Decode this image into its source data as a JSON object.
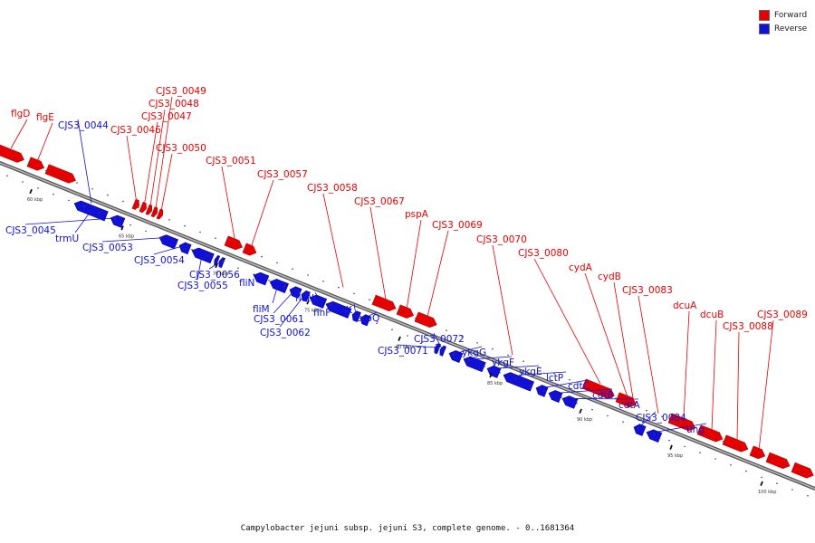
{
  "legend": {
    "items": [
      {
        "label": "Forward",
        "color": "#e60000"
      },
      {
        "label": "Reverse",
        "color": "#1010d8"
      }
    ]
  },
  "caption": "Campylobacter jejuni subsp. jejuni S3, complete genome. - 0..1681364",
  "ticks": [
    "60 kbp",
    "65 kbp",
    "70 kbp",
    "75 kbp",
    "80 kbp",
    "85 kbp",
    "90 kbp",
    "95 kbp",
    "100 kbp"
  ],
  "colors": {
    "forward": "#e60000",
    "reverse": "#1010d8",
    "axis": "#888888"
  },
  "genes": [
    {
      "name": "flgD",
      "strand": "forward"
    },
    {
      "name": "flgE",
      "strand": "forward"
    },
    {
      "name": "CJS3_0044",
      "strand": "reverse"
    },
    {
      "name": "CJS3_0045",
      "strand": "reverse"
    },
    {
      "name": "trmU",
      "strand": "reverse"
    },
    {
      "name": "CJS3_0046",
      "strand": "forward"
    },
    {
      "name": "CJS3_0047",
      "strand": "forward"
    },
    {
      "name": "CJS3_0048",
      "strand": "forward"
    },
    {
      "name": "CJS3_0049",
      "strand": "forward"
    },
    {
      "name": "CJS3_0050",
      "strand": "forward"
    },
    {
      "name": "CJS3_0051",
      "strand": "forward"
    },
    {
      "name": "CJS3_0053",
      "strand": "reverse"
    },
    {
      "name": "CJS3_0054",
      "strand": "reverse"
    },
    {
      "name": "CJS3_0055",
      "strand": "reverse"
    },
    {
      "name": "CJS3_0056",
      "strand": "reverse"
    },
    {
      "name": "CJS3_0057",
      "strand": "forward"
    },
    {
      "name": "CJS3_0058",
      "strand": "forward"
    },
    {
      "name": "fliN",
      "strand": "reverse"
    },
    {
      "name": "fliM",
      "strand": "reverse"
    },
    {
      "name": "CJS3_0061",
      "strand": "reverse"
    },
    {
      "name": "CJS3_0062",
      "strand": "reverse"
    },
    {
      "name": "fleN",
      "strand": "reverse"
    },
    {
      "name": "flhF",
      "strand": "reverse"
    },
    {
      "name": "folK",
      "strand": "reverse"
    },
    {
      "name": "aroQ",
      "strand": "reverse"
    },
    {
      "name": "CJS3_0067",
      "strand": "forward"
    },
    {
      "name": "pspA",
      "strand": "forward"
    },
    {
      "name": "CJS3_0069",
      "strand": "forward"
    },
    {
      "name": "CJS3_0070",
      "strand": "forward"
    },
    {
      "name": "CJS3_0071",
      "strand": "reverse"
    },
    {
      "name": "CJS3_0072",
      "strand": "reverse"
    },
    {
      "name": "ykgG",
      "strand": "reverse"
    },
    {
      "name": "ykgF",
      "strand": "reverse"
    },
    {
      "name": "ykgE",
      "strand": "reverse"
    },
    {
      "name": "lctP",
      "strand": "reverse"
    },
    {
      "name": "cdtC",
      "strand": "reverse"
    },
    {
      "name": "cdtB",
      "strand": "reverse"
    },
    {
      "name": "cdtA",
      "strand": "reverse"
    },
    {
      "name": "CJS3_0080",
      "strand": "forward"
    },
    {
      "name": "cydA",
      "strand": "forward"
    },
    {
      "name": "cydB",
      "strand": "forward"
    },
    {
      "name": "CJS3_0083",
      "strand": "forward"
    },
    {
      "name": "CJS3_0084",
      "strand": "reverse"
    },
    {
      "name": "ung",
      "strand": "reverse"
    },
    {
      "name": "dcuA",
      "strand": "forward"
    },
    {
      "name": "dcuB",
      "strand": "forward"
    },
    {
      "name": "CJS3_0088",
      "strand": "forward"
    },
    {
      "name": "CJS3_0089",
      "strand": "forward"
    }
  ]
}
